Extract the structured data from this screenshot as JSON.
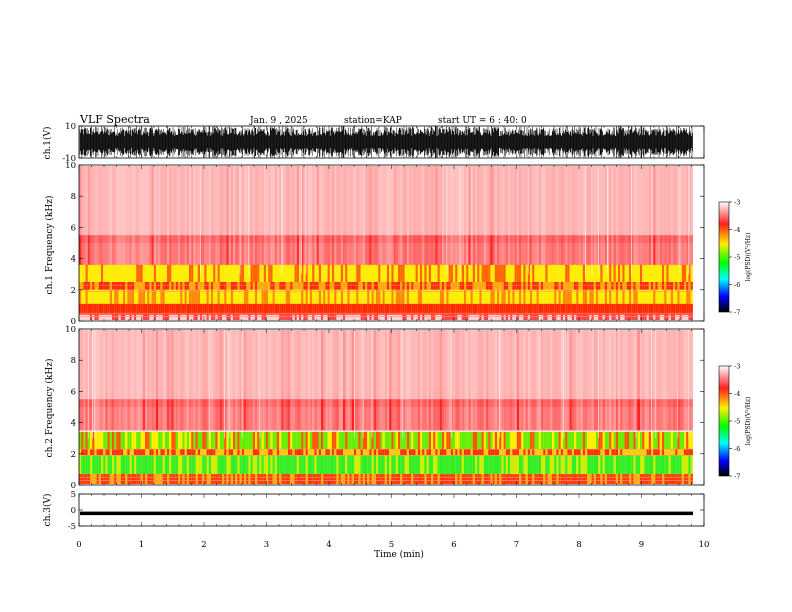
{
  "header": {
    "title": "VLF Spectra",
    "date": "Jan. 9 , 2025",
    "station": "station=KAP",
    "start_ut": "start UT = 6 : 40: 0"
  },
  "chart_data": [
    {
      "type": "line",
      "name": "ch1-waveform",
      "ylabel": "ch.1(V)",
      "ylim": [
        -10,
        10
      ],
      "yticks": [
        "10",
        "-10"
      ],
      "xlim": [
        0,
        10
      ]
    },
    {
      "type": "heatmap",
      "name": "ch1-spectrogram",
      "ylabel": "ch.1 Frequency (kHz)",
      "ylim": [
        0,
        10
      ],
      "yticks": [
        "0",
        "2",
        "4",
        "6",
        "8",
        "10"
      ],
      "xlim": [
        0,
        10
      ],
      "colorbar": {
        "label": "log(PSD)(V²/Hz)",
        "range": [
          -7,
          -3
        ],
        "ticks": [
          "-3",
          "-4",
          "-5",
          "-6",
          "-7"
        ],
        "colors": [
          "#ffffff",
          "#ff0000",
          "#ffff00",
          "#00ff00",
          "#00ffff",
          "#0000ff",
          "#000000"
        ]
      }
    },
    {
      "type": "heatmap",
      "name": "ch2-spectrogram",
      "ylabel": "ch.2 Frequency (kHz)",
      "ylim": [
        0,
        10
      ],
      "yticks": [
        "0",
        "2",
        "4",
        "6",
        "8",
        "10"
      ],
      "xlim": [
        0,
        10
      ],
      "colorbar": {
        "label": "log(PSD)(V²/Hz)",
        "range": [
          -7,
          -3
        ],
        "ticks": [
          "-3",
          "-4",
          "-5",
          "-6",
          "-7"
        ],
        "colors": [
          "#ffffff",
          "#ff0000",
          "#ffff00",
          "#00ff00",
          "#00ffff",
          "#0000ff",
          "#000000"
        ]
      }
    },
    {
      "type": "line",
      "name": "ch3-waveform",
      "ylabel": "ch.3(V)",
      "ylim": [
        -5,
        5
      ],
      "yticks": [
        "5",
        "0",
        "-5"
      ],
      "xlim": [
        0,
        10
      ]
    }
  ],
  "xaxis": {
    "label": "Time (min)",
    "ticks": [
      "0",
      "1",
      "2",
      "3",
      "4",
      "5",
      "6",
      "7",
      "8",
      "9",
      "10"
    ]
  }
}
